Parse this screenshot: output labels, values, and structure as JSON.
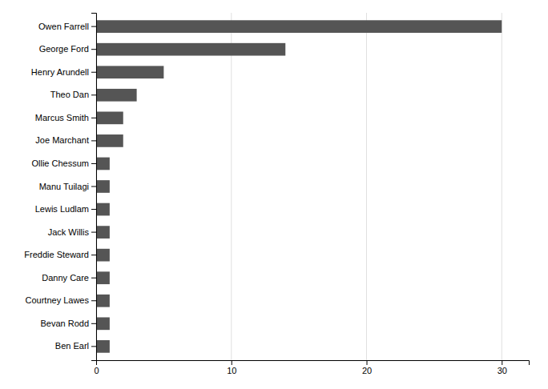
{
  "chart_data": {
    "type": "bar",
    "orientation": "horizontal",
    "categories": [
      "Ben Earl",
      "Bevan Rodd",
      "Courtney Lawes",
      "Danny Care",
      "Freddie Steward",
      "Jack Willis",
      "Lewis Ludlam",
      "Manu Tuilagi",
      "Ollie Chessum",
      "Joe Marchant",
      "Marcus Smith",
      "Theo Dan",
      "Henry Arundell",
      "George Ford",
      "Owen Farrell"
    ],
    "values": [
      1,
      1,
      1,
      1,
      1,
      1,
      1,
      1,
      1,
      2,
      2,
      3,
      5,
      14,
      30
    ],
    "color": "#555555",
    "xlim": [
      0,
      32
    ],
    "xticks": [
      0,
      10,
      20,
      30
    ],
    "grid": true
  }
}
